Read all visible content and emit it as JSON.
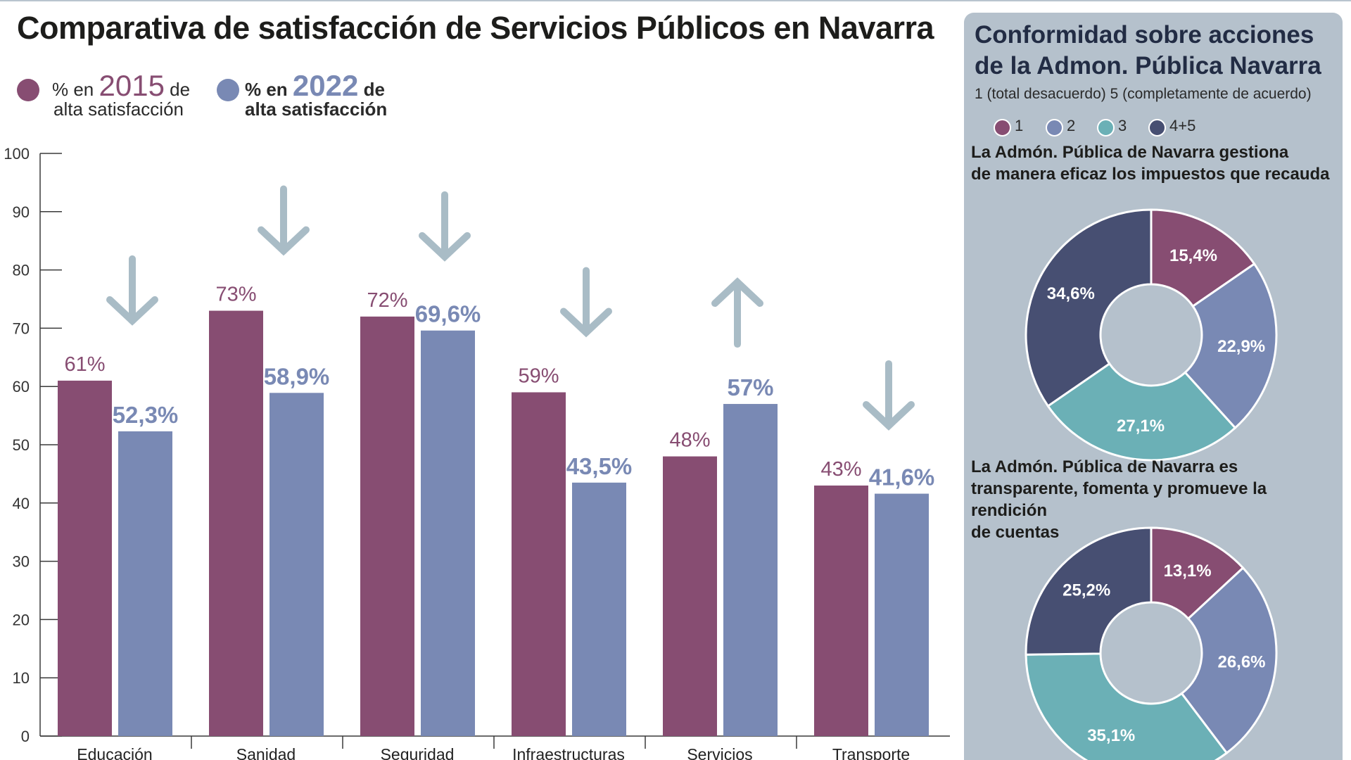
{
  "header": {
    "title": "Comparativa de satisfacción de Servicios Públicos en Navarra"
  },
  "legend": [
    {
      "prefix": "% en",
      "year": "2015",
      "suffix": "de",
      "line2": "alta satisfacción",
      "color": "#874d72"
    },
    {
      "prefix": "% en",
      "year": "2022",
      "suffix": "de",
      "line2": "alta satisfacción",
      "color": "#7989b4"
    }
  ],
  "chart_data": [
    {
      "type": "bar",
      "title": "Comparativa de satisfacción de Servicios Públicos en Navarra",
      "categories": [
        "Educación",
        "Sanidad",
        "Seguridad",
        "Infraestructuras",
        "Servicios",
        "Transporte"
      ],
      "series": [
        {
          "name": "% en 2015 de alta satisfacción",
          "values": [
            61,
            73,
            72,
            59,
            48,
            43
          ],
          "labels": [
            "61%",
            "73%",
            "72%",
            "59%",
            "48%",
            "43%"
          ],
          "color": "#874d72"
        },
        {
          "name": "% en 2022 de alta satisfacción",
          "values": [
            52.3,
            58.9,
            69.6,
            43.5,
            57,
            41.6
          ],
          "labels": [
            "52,3%",
            "58,9%",
            "69,6%",
            "43,5%",
            "57%",
            "41,6%"
          ],
          "color": "#7989b4"
        }
      ],
      "trend_arrows": [
        "down",
        "down",
        "down",
        "down",
        "up",
        "down"
      ],
      "ylim": [
        0,
        100
      ],
      "yticks": [
        0,
        10,
        20,
        30,
        40,
        50,
        60,
        70,
        80,
        90,
        100
      ],
      "grid": false,
      "xlabel": "",
      "ylabel": ""
    },
    {
      "type": "pie",
      "title": "La Admón. Pública de Navarra gestiona de manera eficaz los impuestos que recauda",
      "categories": [
        "1",
        "2",
        "3",
        "4+5"
      ],
      "values": [
        15.4,
        22.9,
        27.1,
        34.6
      ],
      "labels": [
        "15,4%",
        "22,9%",
        "27,1%",
        "34,6%"
      ]
    },
    {
      "type": "pie",
      "title": "La Admón. Pública de Navarra es transparente, fomenta y promueve la rendición de cuentas",
      "categories": [
        "1",
        "2",
        "3",
        "4+5"
      ],
      "values": [
        13.1,
        26.6,
        35.1,
        25.2
      ],
      "labels": [
        "13,1%",
        "26,6%",
        "35,1%",
        "25,2%"
      ]
    }
  ],
  "sidepanel": {
    "title": "Conformidad sobre acciones de la Admon. Pública Navarra",
    "subtitle": "1 (total desacuerdo) 5 (completamente de acuerdo)",
    "legend": [
      {
        "label": "1",
        "color": "#874d72"
      },
      {
        "label": "2",
        "color": "#7989b4"
      },
      {
        "label": "3",
        "color": "#6bb0b6"
      },
      {
        "label": "4+5",
        "color": "#474f72"
      }
    ],
    "q1_lines": [
      "La Admón. Pública de Navarra gestiona",
      "de manera eficaz los impuestos que recauda"
    ],
    "q2_lines": [
      "La Admón. Pública de Navarra es",
      "transparente, fomenta y promueve la",
      "rendición",
      "de cuentas"
    ]
  },
  "colors": {
    "arrow": "#a9bcc6",
    "axis": "#3a3a3a",
    "panel_bg": "#b5c1cc"
  }
}
